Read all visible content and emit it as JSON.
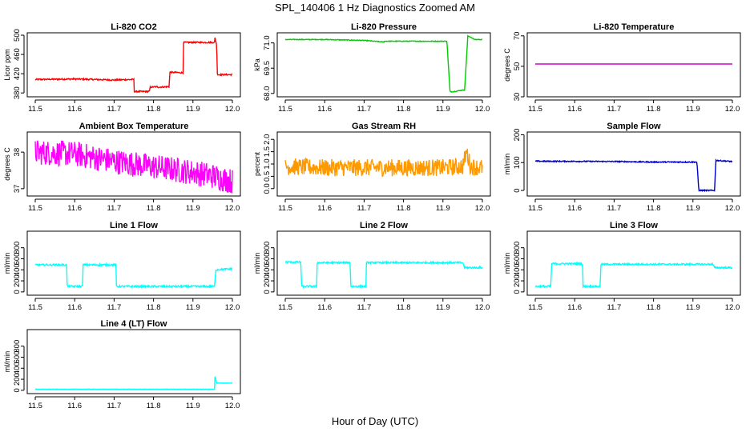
{
  "title": "SPL_140406  1 Hz Diagnostics Zoomed AM",
  "xlabel": "Hour of Day (UTC)",
  "chart_data": [
    {
      "type": "line",
      "title": "Li-820 CO2",
      "ylabel": "Licor ppm",
      "color": "#ff0000",
      "xlim": [
        11.5,
        12.0
      ],
      "ylim": [
        372,
        505
      ],
      "xticks": [
        11.5,
        11.6,
        11.7,
        11.8,
        11.9,
        12.0
      ],
      "yticks": [
        380,
        420,
        460,
        500
      ],
      "noise": 1.5,
      "x": [
        11.5,
        11.6,
        11.7,
        11.75,
        11.751,
        11.79,
        11.791,
        11.81,
        11.811,
        11.84,
        11.841,
        11.875,
        11.876,
        11.955,
        11.956,
        11.96,
        11.962,
        12.0
      ],
      "y": [
        408,
        409,
        407,
        408,
        383,
        383,
        392,
        393,
        392,
        393,
        423,
        422,
        485,
        485,
        495,
        480,
        418,
        418
      ]
    },
    {
      "type": "line",
      "title": "Li-820 Pressure",
      "ylabel": "kPa",
      "color": "#00cc00",
      "xlim": [
        11.5,
        12.0
      ],
      "ylim": [
        67.8,
        71.6
      ],
      "xticks": [
        11.5,
        11.6,
        11.7,
        11.8,
        11.9,
        12.0
      ],
      "yticks": [
        68.0,
        69.5,
        71.0
      ],
      "noise": 0.02,
      "x": [
        11.5,
        11.6,
        11.7,
        11.75,
        11.751,
        11.8,
        11.85,
        11.91,
        11.918,
        11.925,
        11.95,
        11.955,
        11.963,
        11.97,
        11.98,
        12.0
      ],
      "y": [
        71.2,
        71.2,
        71.15,
        71.05,
        71.1,
        71.1,
        71.1,
        71.1,
        68.1,
        68.1,
        68.2,
        68.2,
        71.4,
        71.35,
        71.2,
        71.2
      ]
    },
    {
      "type": "line",
      "title": "Li-820 Temperature",
      "ylabel": "degrees C",
      "color": "#cc00cc",
      "xlim": [
        11.5,
        12.0
      ],
      "ylim": [
        30,
        72
      ],
      "xticks": [
        11.5,
        11.6,
        11.7,
        11.8,
        11.9,
        12.0
      ],
      "yticks": [
        30,
        50,
        70
      ],
      "noise": 0,
      "x": [
        11.5,
        12.0
      ],
      "y": [
        51.5,
        51.5
      ]
    },
    {
      "type": "line",
      "title": "Ambient Box Temperature",
      "ylabel": "degrees C",
      "color": "#ff00ff",
      "xlim": [
        11.5,
        12.0
      ],
      "ylim": [
        36.8,
        38.55
      ],
      "xticks": [
        11.5,
        11.6,
        11.7,
        11.8,
        11.9,
        12.0
      ],
      "yticks": [
        37.0,
        38.0
      ],
      "noise": 0.35,
      "x": [
        11.5,
        11.6,
        11.7,
        11.8,
        11.9,
        11.95,
        12.0
      ],
      "y": [
        38.0,
        37.95,
        37.75,
        37.6,
        37.45,
        37.35,
        37.2
      ]
    },
    {
      "type": "line",
      "title": "Gas Stream RH",
      "ylabel": "percent",
      "color": "#ff9900",
      "xlim": [
        11.5,
        12.0
      ],
      "ylim": [
        -0.3,
        2.3
      ],
      "xticks": [
        11.5,
        11.6,
        11.7,
        11.8,
        11.9,
        12.0
      ],
      "yticks": [
        0.0,
        0.5,
        1.0,
        1.5,
        2.0
      ],
      "noise": 0.35,
      "x": [
        11.5,
        11.6,
        11.7,
        11.8,
        11.9,
        11.95,
        11.96,
        11.97,
        12.0
      ],
      "y": [
        0.9,
        0.85,
        0.85,
        0.85,
        0.85,
        0.9,
        1.5,
        0.9,
        0.85
      ]
    },
    {
      "type": "line",
      "title": "Sample Flow",
      "ylabel": "ml/min",
      "color": "#0000cc",
      "xlim": [
        11.5,
        12.0
      ],
      "ylim": [
        -20,
        210
      ],
      "xticks": [
        11.5,
        11.6,
        11.7,
        11.8,
        11.9,
        12.0
      ],
      "yticks": [
        0,
        100,
        200
      ],
      "noise": 2,
      "x": [
        11.5,
        11.7,
        11.8,
        11.91,
        11.915,
        11.955,
        11.958,
        12.0
      ],
      "y": [
        105,
        104,
        102,
        102,
        0,
        0,
        108,
        104
      ]
    },
    {
      "type": "line",
      "title": "Line 1 Flow",
      "ylabel": "ml/min",
      "color": "#00ffff",
      "xlim": [
        11.5,
        12.0
      ],
      "ylim": [
        -60,
        1100
      ],
      "xticks": [
        11.5,
        11.6,
        11.7,
        11.8,
        11.9,
        12.0
      ],
      "yticks": [
        0,
        200,
        400,
        600,
        800
      ],
      "noise": 15,
      "x": [
        11.5,
        11.58,
        11.581,
        11.62,
        11.621,
        11.705,
        11.706,
        11.955,
        11.958,
        12.0
      ],
      "y": [
        490,
        490,
        100,
        100,
        490,
        490,
        100,
        100,
        400,
        420
      ]
    },
    {
      "type": "line",
      "title": "Line 2 Flow",
      "ylabel": "ml/min",
      "color": "#00ffff",
      "xlim": [
        11.5,
        12.0
      ],
      "ylim": [
        -60,
        1100
      ],
      "xticks": [
        11.5,
        11.6,
        11.7,
        11.8,
        11.9,
        12.0
      ],
      "yticks": [
        0,
        200,
        400,
        600,
        800
      ],
      "noise": 15,
      "x": [
        11.5,
        11.54,
        11.541,
        11.58,
        11.581,
        11.665,
        11.666,
        11.705,
        11.706,
        11.95,
        11.955,
        12.0
      ],
      "y": [
        540,
        540,
        100,
        100,
        530,
        530,
        100,
        100,
        530,
        530,
        440,
        440
      ]
    },
    {
      "type": "line",
      "title": "Line 3 Flow",
      "ylabel": "ml/min",
      "color": "#00ffff",
      "xlim": [
        11.5,
        12.0
      ],
      "ylim": [
        -60,
        1100
      ],
      "xticks": [
        11.5,
        11.6,
        11.7,
        11.8,
        11.9,
        12.0
      ],
      "yticks": [
        0,
        200,
        400,
        600,
        800
      ],
      "noise": 15,
      "x": [
        11.5,
        11.54,
        11.541,
        11.62,
        11.621,
        11.665,
        11.666,
        11.95,
        11.955,
        12.0
      ],
      "y": [
        100,
        100,
        510,
        510,
        100,
        100,
        500,
        500,
        440,
        440
      ]
    },
    {
      "type": "line",
      "title": "Line 4 (LT) Flow",
      "ylabel": "ml/min",
      "color": "#00ffff",
      "xlim": [
        11.5,
        12.0
      ],
      "ylim": [
        -60,
        1100
      ],
      "xticks": [
        11.5,
        11.6,
        11.7,
        11.8,
        11.9,
        12.0
      ],
      "yticks": [
        0,
        200,
        400,
        600,
        800
      ],
      "noise": 3,
      "x": [
        11.5,
        11.955,
        11.956,
        11.958,
        11.96,
        11.965,
        12.0
      ],
      "y": [
        20,
        20,
        260,
        200,
        130,
        130,
        130
      ]
    }
  ]
}
